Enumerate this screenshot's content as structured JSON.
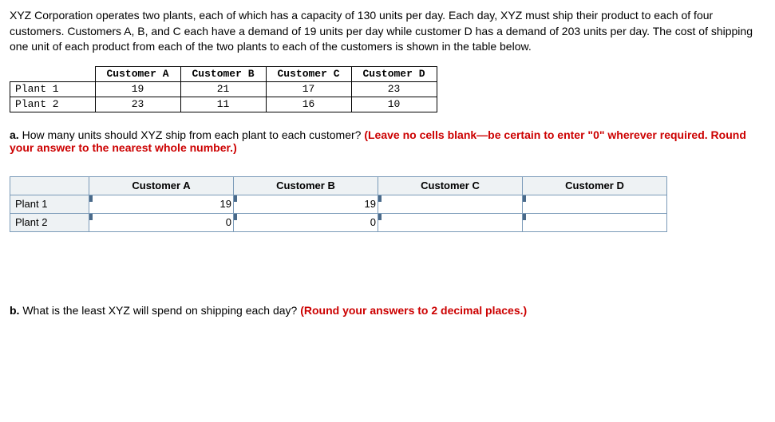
{
  "problem_text": "XYZ Corporation operates two plants, each of which has a capacity of 130 units per day. Each day, XYZ must ship their product to each of four customers. Customers A, B, and C each have a demand of 19 units per day while customer D has a demand of 203 units per day. The cost of shipping one unit of each product from each of the two plants to each of the customers is shown in the table below.",
  "cost_table": {
    "columns": [
      "Customer A",
      "Customer B",
      "Customer C",
      "Customer D"
    ],
    "rows": [
      {
        "label": "Plant 1",
        "values": [
          "19",
          "21",
          "17",
          "23"
        ]
      },
      {
        "label": "Plant 2",
        "values": [
          "23",
          "11",
          "16",
          "10"
        ]
      }
    ]
  },
  "question_a": {
    "label": "a.",
    "text": "How many units should XYZ ship from each plant to each customer? ",
    "hint": "(Leave no cells blank—be certain to enter \"0\" wherever required. Round your answer to the nearest whole number.)"
  },
  "answer_table": {
    "columns": [
      "Customer A",
      "Customer B",
      "Customer C",
      "Customer D"
    ],
    "rows": [
      {
        "label": "Plant 1",
        "values": [
          "19",
          "19",
          "",
          ""
        ]
      },
      {
        "label": "Plant 2",
        "values": [
          "0",
          "0",
          "",
          ""
        ]
      }
    ]
  },
  "question_b": {
    "label": "b.",
    "text": "What is the least XYZ will spend on shipping each day? ",
    "hint": "(Round your answers to 2 decimal places.)"
  }
}
